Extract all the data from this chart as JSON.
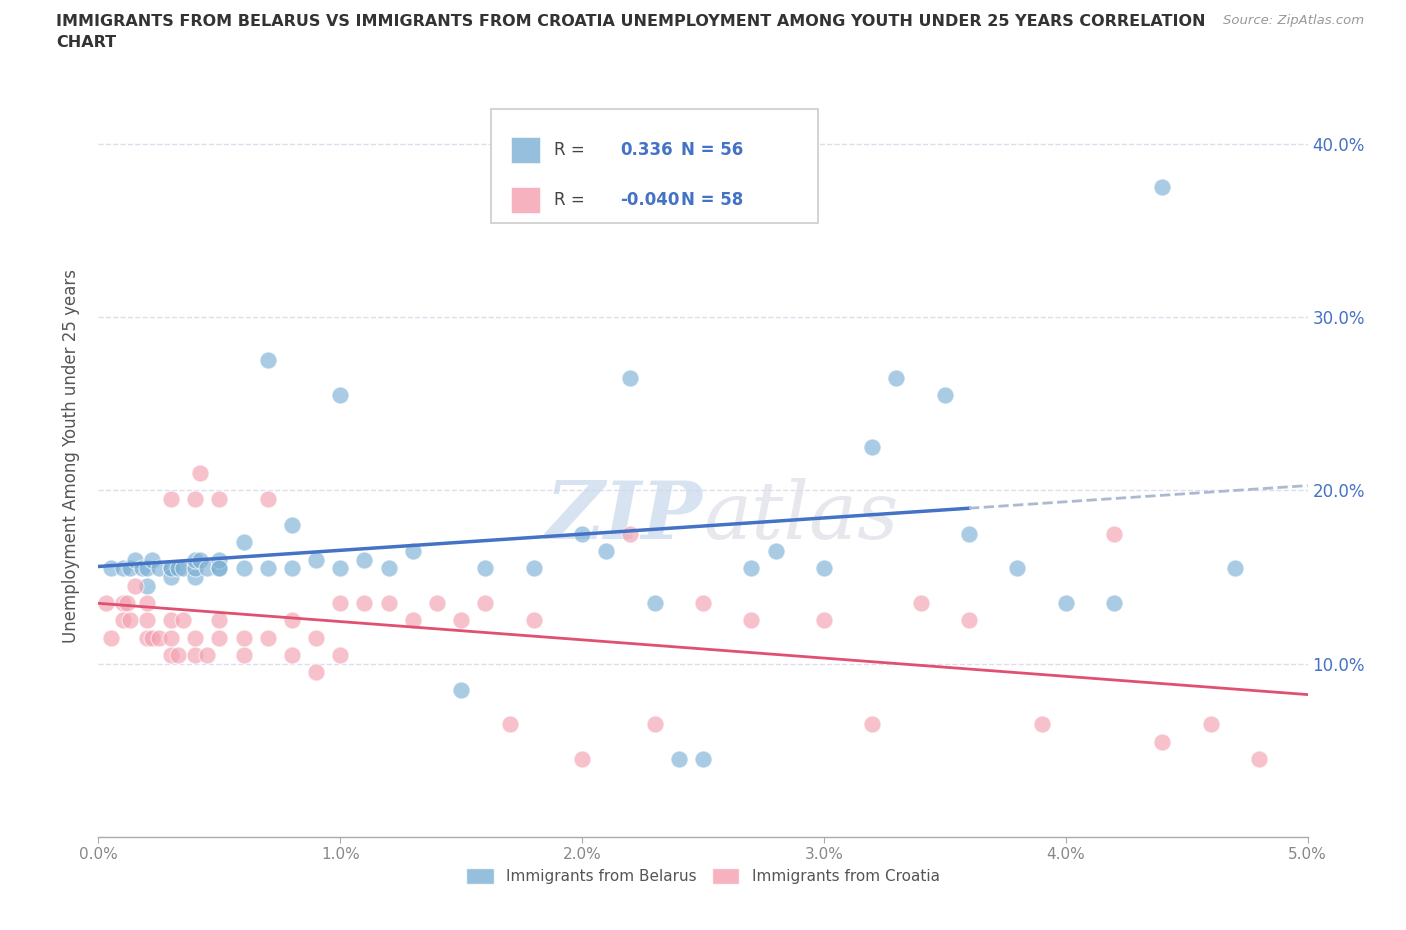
{
  "title_line1": "IMMIGRANTS FROM BELARUS VS IMMIGRANTS FROM CROATIA UNEMPLOYMENT AMONG YOUTH UNDER 25 YEARS CORRELATION",
  "title_line2": "CHART",
  "source": "Source: ZipAtlas.com",
  "ylabel": "Unemployment Among Youth under 25 years",
  "xlim": [
    0.0,
    0.05
  ],
  "ylim": [
    0.0,
    0.44
  ],
  "xticks": [
    0.0,
    0.01,
    0.02,
    0.03,
    0.04,
    0.05
  ],
  "xtick_labels": [
    "0.0%",
    "1.0%",
    "2.0%",
    "3.0%",
    "4.0%",
    "5.0%"
  ],
  "yticks": [
    0.1,
    0.2,
    0.3,
    0.4
  ],
  "ytick_labels": [
    "10.0%",
    "20.0%",
    "30.0%",
    "40.0%"
  ],
  "R_belarus": 0.336,
  "N_belarus": 56,
  "R_croatia": -0.04,
  "N_croatia": 58,
  "color_belarus": "#7BAFD4",
  "color_croatia": "#F4A0B0",
  "color_belarus_line": "#4472C4",
  "color_croatia_line": "#E05070",
  "color_dashed_line": "#AABBD0",
  "color_ytick": "#4472C4",
  "color_xtick": "#888888",
  "legend_label_belarus": "Immigrants from Belarus",
  "legend_label_croatia": "Immigrants from Croatia",
  "background_color": "#ffffff",
  "grid_color": "#DDDDEE",
  "watermark": "ZIPatlas",
  "belarus_x": [
    0.0005,
    0.001,
    0.0013,
    0.0015,
    0.0018,
    0.002,
    0.002,
    0.0022,
    0.0025,
    0.003,
    0.003,
    0.003,
    0.0033,
    0.0035,
    0.004,
    0.004,
    0.004,
    0.0042,
    0.0045,
    0.005,
    0.005,
    0.005,
    0.006,
    0.006,
    0.007,
    0.007,
    0.008,
    0.008,
    0.009,
    0.01,
    0.01,
    0.011,
    0.012,
    0.013,
    0.015,
    0.016,
    0.018,
    0.019,
    0.02,
    0.021,
    0.022,
    0.023,
    0.024,
    0.025,
    0.027,
    0.028,
    0.03,
    0.032,
    0.033,
    0.035,
    0.036,
    0.038,
    0.04,
    0.042,
    0.044,
    0.047
  ],
  "belarus_y": [
    0.155,
    0.155,
    0.155,
    0.16,
    0.155,
    0.145,
    0.155,
    0.16,
    0.155,
    0.155,
    0.15,
    0.155,
    0.155,
    0.155,
    0.15,
    0.155,
    0.16,
    0.16,
    0.155,
    0.155,
    0.16,
    0.155,
    0.17,
    0.155,
    0.155,
    0.275,
    0.155,
    0.18,
    0.16,
    0.155,
    0.255,
    0.16,
    0.155,
    0.165,
    0.085,
    0.155,
    0.155,
    0.365,
    0.175,
    0.165,
    0.265,
    0.135,
    0.045,
    0.045,
    0.155,
    0.165,
    0.155,
    0.225,
    0.265,
    0.255,
    0.175,
    0.155,
    0.135,
    0.135,
    0.375,
    0.155
  ],
  "croatia_x": [
    0.0003,
    0.0005,
    0.001,
    0.001,
    0.0012,
    0.0013,
    0.0015,
    0.002,
    0.002,
    0.002,
    0.0022,
    0.0025,
    0.003,
    0.003,
    0.003,
    0.003,
    0.0033,
    0.0035,
    0.004,
    0.004,
    0.004,
    0.0042,
    0.0045,
    0.005,
    0.005,
    0.005,
    0.006,
    0.006,
    0.007,
    0.007,
    0.008,
    0.008,
    0.009,
    0.009,
    0.01,
    0.01,
    0.011,
    0.012,
    0.013,
    0.014,
    0.015,
    0.016,
    0.017,
    0.018,
    0.02,
    0.022,
    0.023,
    0.025,
    0.027,
    0.03,
    0.032,
    0.034,
    0.036,
    0.039,
    0.042,
    0.044,
    0.046,
    0.048
  ],
  "croatia_y": [
    0.135,
    0.115,
    0.135,
    0.125,
    0.135,
    0.125,
    0.145,
    0.115,
    0.125,
    0.135,
    0.115,
    0.115,
    0.105,
    0.115,
    0.125,
    0.195,
    0.105,
    0.125,
    0.105,
    0.115,
    0.195,
    0.21,
    0.105,
    0.115,
    0.125,
    0.195,
    0.105,
    0.115,
    0.115,
    0.195,
    0.105,
    0.125,
    0.095,
    0.115,
    0.105,
    0.135,
    0.135,
    0.135,
    0.125,
    0.135,
    0.125,
    0.135,
    0.065,
    0.125,
    0.045,
    0.175,
    0.065,
    0.135,
    0.125,
    0.125,
    0.065,
    0.135,
    0.125,
    0.065,
    0.175,
    0.055,
    0.065,
    0.045
  ]
}
